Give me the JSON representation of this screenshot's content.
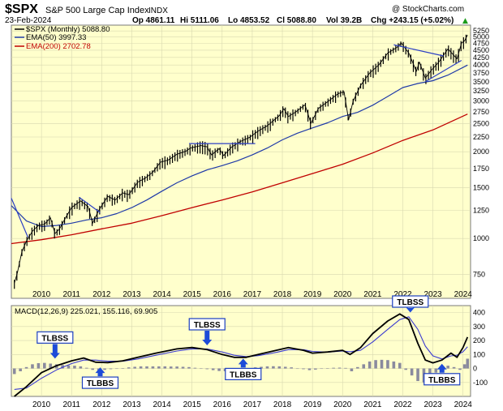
{
  "header": {
    "symbol": "$SPX",
    "name": "S&P 500 Large Cap Index",
    "exchange": "INDX",
    "date": "23-Feb-2024",
    "open": "Op 4861.11",
    "high": "Hi 5111.06",
    "low": "Lo 4853.52",
    "close": "Cl 5088.80",
    "volume": "Vol 39.2B",
    "change": "Chg +243.15 (+5.02%)",
    "change_arrow": "▲",
    "watermark": "@ StockCharts.com"
  },
  "colors": {
    "panel_bg": "#ffffcc",
    "price": "#000000",
    "ema50": "#1f3aa8",
    "ema200": "#c00000",
    "macd_line": "#000000",
    "signal_line": "#3b3bd0",
    "histogram": "#8a8a9e",
    "arrow": "#1d4bd8",
    "label_box": "#1c3fbf"
  },
  "chart_data": {
    "type": "line",
    "title": "$SPX S&P 500 Large Cap Index INDX",
    "period": "Monthly",
    "price_legend": "$SPX (Monthly) 5088.80",
    "ema50_legend": "EMA(50) 3997.33",
    "ema200_legend": "EMA(200) 2702.78",
    "y_scale": "log",
    "ylim": [
      620,
      5500
    ],
    "y_ticks": [
      750,
      1000,
      1250,
      1500,
      1750,
      2000,
      2250,
      2500,
      2750,
      3000,
      3250,
      3500,
      3750,
      4000,
      4250,
      4500,
      4750,
      5000,
      5250
    ],
    "x_labels": [
      "2010",
      "2011",
      "2012",
      "2013",
      "2014",
      "2015",
      "2016",
      "2017",
      "2018",
      "2019",
      "2020",
      "2021",
      "2022",
      "2023",
      "2024"
    ],
    "xlim": [
      2009.0,
      2024.25
    ],
    "price_series": [
      [
        2009.1,
        700
      ],
      [
        2009.2,
        760
      ],
      [
        2009.35,
        900
      ],
      [
        2009.5,
        980
      ],
      [
        2009.7,
        1060
      ],
      [
        2009.9,
        1110
      ],
      [
        2010.1,
        1120
      ],
      [
        2010.3,
        1180
      ],
      [
        2010.45,
        1040
      ],
      [
        2010.6,
        1080
      ],
      [
        2010.8,
        1180
      ],
      [
        2011.0,
        1280
      ],
      [
        2011.3,
        1350
      ],
      [
        2011.55,
        1290
      ],
      [
        2011.7,
        1130
      ],
      [
        2011.9,
        1250
      ],
      [
        2012.2,
        1400
      ],
      [
        2012.45,
        1360
      ],
      [
        2012.7,
        1440
      ],
      [
        2012.9,
        1420
      ],
      [
        2013.2,
        1570
      ],
      [
        2013.45,
        1620
      ],
      [
        2013.7,
        1700
      ],
      [
        2013.95,
        1840
      ],
      [
        2014.2,
        1870
      ],
      [
        2014.5,
        1960
      ],
      [
        2014.8,
        2010
      ],
      [
        2014.95,
        2060
      ],
      [
        2015.3,
        2100
      ],
      [
        2015.5,
        2080
      ],
      [
        2015.65,
        1950
      ],
      [
        2015.9,
        2050
      ],
      [
        2016.05,
        1940
      ],
      [
        2016.3,
        2070
      ],
      [
        2016.6,
        2170
      ],
      [
        2016.9,
        2240
      ],
      [
        2017.2,
        2360
      ],
      [
        2017.5,
        2460
      ],
      [
        2017.9,
        2670
      ],
      [
        2018.05,
        2820
      ],
      [
        2018.2,
        2650
      ],
      [
        2018.45,
        2750
      ],
      [
        2018.75,
        2910
      ],
      [
        2018.95,
        2510
      ],
      [
        2019.2,
        2830
      ],
      [
        2019.5,
        2980
      ],
      [
        2019.85,
        3180
      ],
      [
        2020.05,
        3230
      ],
      [
        2020.2,
        2580
      ],
      [
        2020.35,
        3000
      ],
      [
        2020.6,
        3400
      ],
      [
        2020.9,
        3750
      ],
      [
        2021.2,
        4000
      ],
      [
        2021.5,
        4400
      ],
      [
        2021.8,
        4600
      ],
      [
        2021.95,
        4770
      ],
      [
        2022.2,
        4400
      ],
      [
        2022.45,
        3800
      ],
      [
        2022.55,
        4100
      ],
      [
        2022.75,
        3600
      ],
      [
        2022.95,
        3840
      ],
      [
        2023.2,
        4100
      ],
      [
        2023.5,
        4550
      ],
      [
        2023.8,
        4200
      ],
      [
        2023.95,
        4770
      ],
      [
        2024.05,
        4850
      ],
      [
        2024.15,
        5089
      ]
    ],
    "ema50_series": [
      [
        2009.0,
        1300
      ],
      [
        2009.5,
        1150
      ],
      [
        2010.0,
        1100
      ],
      [
        2010.5,
        1110
      ],
      [
        2011.0,
        1130
      ],
      [
        2011.5,
        1160
      ],
      [
        2012.0,
        1180
      ],
      [
        2012.5,
        1220
      ],
      [
        2013.0,
        1280
      ],
      [
        2013.5,
        1360
      ],
      [
        2014.0,
        1460
      ],
      [
        2014.5,
        1560
      ],
      [
        2015.0,
        1650
      ],
      [
        2015.5,
        1730
      ],
      [
        2016.0,
        1790
      ],
      [
        2016.5,
        1860
      ],
      [
        2017.0,
        1950
      ],
      [
        2017.5,
        2060
      ],
      [
        2018.0,
        2200
      ],
      [
        2018.5,
        2320
      ],
      [
        2019.0,
        2420
      ],
      [
        2019.5,
        2520
      ],
      [
        2020.0,
        2650
      ],
      [
        2020.5,
        2740
      ],
      [
        2021.0,
        2900
      ],
      [
        2021.5,
        3110
      ],
      [
        2022.0,
        3340
      ],
      [
        2022.5,
        3450
      ],
      [
        2023.0,
        3530
      ],
      [
        2023.5,
        3690
      ],
      [
        2024.15,
        3997
      ]
    ],
    "ema200_series": [
      [
        2009.0,
        960
      ],
      [
        2010.0,
        990
      ],
      [
        2011.0,
        1030
      ],
      [
        2012.0,
        1080
      ],
      [
        2013.0,
        1130
      ],
      [
        2014.0,
        1200
      ],
      [
        2015.0,
        1280
      ],
      [
        2016.0,
        1360
      ],
      [
        2017.0,
        1450
      ],
      [
        2018.0,
        1560
      ],
      [
        2019.0,
        1680
      ],
      [
        2020.0,
        1810
      ],
      [
        2021.0,
        1980
      ],
      [
        2022.0,
        2190
      ],
      [
        2023.0,
        2380
      ],
      [
        2024.15,
        2703
      ]
    ],
    "trendlines": [
      {
        "from": [
          2008.7,
          1380
        ],
        "to": [
          2009.55,
          1010
        ]
      },
      {
        "from": [
          2011.25,
          1390
        ],
        "to": [
          2011.95,
          1230
        ]
      },
      {
        "from": [
          2014.9,
          2135
        ],
        "to": [
          2017.1,
          2135
        ]
      },
      {
        "from": [
          2021.7,
          4700
        ],
        "to": [
          2023.35,
          4300
        ]
      },
      {
        "from": [
          2022.75,
          3500
        ],
        "to": [
          2023.95,
          4150
        ]
      }
    ],
    "macd": {
      "legend": "MACD(12,26,9) 225.021, 155.116, 69.905",
      "ylim": [
        -200,
        450
      ],
      "y_ticks": [
        -100,
        0,
        100,
        200,
        300,
        400
      ],
      "macd_series": [
        [
          2009.1,
          -200
        ],
        [
          2009.5,
          -130
        ],
        [
          2010.0,
          -30
        ],
        [
          2010.5,
          20
        ],
        [
          2011.0,
          55
        ],
        [
          2011.4,
          75
        ],
        [
          2011.8,
          45
        ],
        [
          2012.2,
          42
        ],
        [
          2012.7,
          55
        ],
        [
          2013.2,
          80
        ],
        [
          2013.8,
          110
        ],
        [
          2014.5,
          140
        ],
        [
          2015.0,
          150
        ],
        [
          2015.5,
          135
        ],
        [
          2016.0,
          100
        ],
        [
          2016.4,
          80
        ],
        [
          2016.8,
          80
        ],
        [
          2017.2,
          100
        ],
        [
          2017.8,
          130
        ],
        [
          2018.2,
          150
        ],
        [
          2018.7,
          130
        ],
        [
          2019.0,
          110
        ],
        [
          2019.5,
          118
        ],
        [
          2020.0,
          130
        ],
        [
          2020.25,
          100
        ],
        [
          2020.6,
          150
        ],
        [
          2021.0,
          250
        ],
        [
          2021.5,
          340
        ],
        [
          2021.9,
          390
        ],
        [
          2022.2,
          350
        ],
        [
          2022.5,
          180
        ],
        [
          2022.75,
          60
        ],
        [
          2023.0,
          40
        ],
        [
          2023.3,
          60
        ],
        [
          2023.6,
          110
        ],
        [
          2023.8,
          80
        ],
        [
          2024.0,
          150
        ],
        [
          2024.15,
          225
        ]
      ],
      "signal_series": [
        [
          2009.1,
          -150
        ],
        [
          2009.5,
          -140
        ],
        [
          2010.0,
          -70
        ],
        [
          2010.5,
          -10
        ],
        [
          2011.0,
          35
        ],
        [
          2011.4,
          60
        ],
        [
          2011.8,
          60
        ],
        [
          2012.2,
          52
        ],
        [
          2012.7,
          52
        ],
        [
          2013.2,
          68
        ],
        [
          2013.8,
          95
        ],
        [
          2014.5,
          125
        ],
        [
          2015.0,
          140
        ],
        [
          2015.5,
          140
        ],
        [
          2016.0,
          118
        ],
        [
          2016.4,
          95
        ],
        [
          2016.8,
          85
        ],
        [
          2017.2,
          92
        ],
        [
          2017.8,
          115
        ],
        [
          2018.2,
          135
        ],
        [
          2018.7,
          135
        ],
        [
          2019.0,
          122
        ],
        [
          2019.5,
          117
        ],
        [
          2020.0,
          125
        ],
        [
          2020.25,
          120
        ],
        [
          2020.6,
          130
        ],
        [
          2021.0,
          190
        ],
        [
          2021.5,
          280
        ],
        [
          2021.9,
          350
        ],
        [
          2022.2,
          370
        ],
        [
          2022.5,
          280
        ],
        [
          2022.75,
          160
        ],
        [
          2023.0,
          90
        ],
        [
          2023.3,
          68
        ],
        [
          2023.6,
          90
        ],
        [
          2023.8,
          95
        ],
        [
          2024.0,
          120
        ],
        [
          2024.15,
          155
        ]
      ],
      "histogram_series": [
        [
          2009.1,
          -40
        ],
        [
          2009.3,
          -20
        ],
        [
          2009.5,
          10
        ],
        [
          2009.7,
          30
        ],
        [
          2009.9,
          38
        ],
        [
          2010.1,
          40
        ],
        [
          2010.3,
          35
        ],
        [
          2010.5,
          30
        ],
        [
          2010.7,
          25
        ],
        [
          2010.9,
          22
        ],
        [
          2011.1,
          20
        ],
        [
          2011.3,
          15
        ],
        [
          2011.5,
          5
        ],
        [
          2011.7,
          -10
        ],
        [
          2011.9,
          -15
        ],
        [
          2012.1,
          -10
        ],
        [
          2012.3,
          -5
        ],
        [
          2012.5,
          0
        ],
        [
          2012.7,
          3
        ],
        [
          2012.9,
          8
        ],
        [
          2013.1,
          12
        ],
        [
          2013.3,
          15
        ],
        [
          2013.5,
          15
        ],
        [
          2013.7,
          15
        ],
        [
          2013.9,
          15
        ],
        [
          2014.1,
          15
        ],
        [
          2014.3,
          14
        ],
        [
          2014.5,
          14
        ],
        [
          2014.7,
          12
        ],
        [
          2014.9,
          10
        ],
        [
          2015.1,
          5
        ],
        [
          2015.3,
          0
        ],
        [
          2015.5,
          -5
        ],
        [
          2015.7,
          -12
        ],
        [
          2015.9,
          -18
        ],
        [
          2016.1,
          -20
        ],
        [
          2016.3,
          -15
        ],
        [
          2016.5,
          -10
        ],
        [
          2016.7,
          -5
        ],
        [
          2016.9,
          0
        ],
        [
          2017.1,
          8
        ],
        [
          2017.3,
          12
        ],
        [
          2017.5,
          15
        ],
        [
          2017.7,
          16
        ],
        [
          2017.9,
          15
        ],
        [
          2018.1,
          12
        ],
        [
          2018.3,
          8
        ],
        [
          2018.5,
          0
        ],
        [
          2018.7,
          -5
        ],
        [
          2018.9,
          -12
        ],
        [
          2019.1,
          -8
        ],
        [
          2019.3,
          -2
        ],
        [
          2019.5,
          2
        ],
        [
          2019.7,
          5
        ],
        [
          2019.9,
          6
        ],
        [
          2020.1,
          4
        ],
        [
          2020.3,
          -20
        ],
        [
          2020.5,
          10
        ],
        [
          2020.7,
          30
        ],
        [
          2020.9,
          50
        ],
        [
          2021.1,
          60
        ],
        [
          2021.3,
          62
        ],
        [
          2021.5,
          60
        ],
        [
          2021.7,
          50
        ],
        [
          2021.9,
          40
        ],
        [
          2022.1,
          -10
        ],
        [
          2022.3,
          -50
        ],
        [
          2022.5,
          -90
        ],
        [
          2022.7,
          -100
        ],
        [
          2022.9,
          -70
        ],
        [
          2023.1,
          -30
        ],
        [
          2023.3,
          -5
        ],
        [
          2023.5,
          20
        ],
        [
          2023.7,
          10
        ],
        [
          2023.9,
          -10
        ],
        [
          2024.05,
          30
        ],
        [
          2024.15,
          70
        ]
      ]
    },
    "annotations": [
      {
        "label": "TLBSS",
        "type": "sell",
        "x": 2010.45,
        "value": 65
      },
      {
        "label": "TLBBS",
        "type": "buy",
        "x": 2011.95,
        "value": 20
      },
      {
        "label": "TLBSS",
        "type": "sell",
        "x": 2015.5,
        "value": 160
      },
      {
        "label": "TLBBS",
        "type": "buy",
        "x": 2016.7,
        "value": 82
      },
      {
        "label": "TLBSS",
        "type": "sell",
        "x": 2022.25,
        "value": 395
      },
      {
        "label": "TLBBS",
        "type": "buy",
        "x": 2023.3,
        "value": 45
      }
    ]
  }
}
